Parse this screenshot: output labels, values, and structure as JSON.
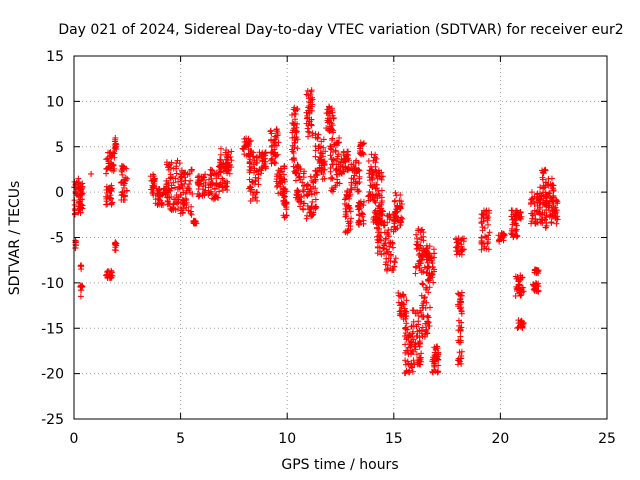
{
  "chart_data": {
    "type": "scatter",
    "title": "Day 021 of 2024, Sidereal Day-to-day VTEC variation (SDTVAR) for receiver eur2",
    "xlabel": "GPS time / hours",
    "ylabel": "SDTVAR / TECUs",
    "xlim": [
      0,
      25
    ],
    "ylim": [
      -25,
      15
    ],
    "xticks": [
      0,
      5,
      10,
      15,
      20,
      25
    ],
    "yticks": [
      -25,
      -20,
      -15,
      -10,
      -5,
      0,
      5,
      10,
      15
    ],
    "xtick_labels": [
      "0",
      "5",
      "10",
      "15",
      "20",
      "25"
    ],
    "ytick_labels": [
      "-25",
      "-20",
      "-15",
      "-10",
      "-5",
      "0",
      "5",
      "10",
      "15"
    ],
    "grid": true,
    "marker": "+",
    "marker_color": "#ff0000",
    "series": [
      {
        "name": "SDTVAR",
        "segments": [
          {
            "x0": 0.0,
            "x1": 0.4,
            "y0": -2.5,
            "y1": 1.5
          },
          {
            "x0": 0.05,
            "x1": 0.1,
            "y0": -6.5,
            "y1": -5.0
          },
          {
            "x0": 0.3,
            "x1": 0.4,
            "y0": -11.5,
            "y1": -10.0
          },
          {
            "x0": 0.3,
            "x1": 0.35,
            "y0": -8.5,
            "y1": -8.0
          },
          {
            "x0": 0.2,
            "x1": 0.4,
            "y0": -2.0,
            "y1": 1.0
          },
          {
            "x0": 0.8,
            "x1": 0.8,
            "y0": 2.0,
            "y1": 2.0
          },
          {
            "x0": 1.5,
            "x1": 1.8,
            "y0": -9.5,
            "y1": -8.5
          },
          {
            "x0": 1.5,
            "x1": 1.9,
            "y0": 2.0,
            "y1": 4.5
          },
          {
            "x0": 1.5,
            "x1": 1.8,
            "y0": -1.5,
            "y1": 1.0
          },
          {
            "x0": 1.9,
            "x1": 2.0,
            "y0": 4.5,
            "y1": 6.0
          },
          {
            "x0": 1.9,
            "x1": 2.0,
            "y0": -6.5,
            "y1": -5.5
          },
          {
            "x0": 2.2,
            "x1": 2.5,
            "y0": -1.0,
            "y1": 3.0
          },
          {
            "x0": 3.6,
            "x1": 3.8,
            "y0": -0.5,
            "y1": 2.0
          },
          {
            "x0": 3.8,
            "x1": 4.5,
            "y0": -1.5,
            "y1": 0.5
          },
          {
            "x0": 4.3,
            "x1": 5.0,
            "y0": -2.0,
            "y1": 3.5
          },
          {
            "x0": 5.0,
            "x1": 5.6,
            "y0": -2.5,
            "y1": 2.5
          },
          {
            "x0": 5.6,
            "x1": 5.8,
            "y0": -3.5,
            "y1": -3.0
          },
          {
            "x0": 5.8,
            "x1": 6.2,
            "y0": -0.5,
            "y1": 2.0
          },
          {
            "x0": 6.3,
            "x1": 6.8,
            "y0": -1.0,
            "y1": 2.5
          },
          {
            "x0": 6.8,
            "x1": 7.2,
            "y0": 0.0,
            "y1": 5.0
          },
          {
            "x0": 7.1,
            "x1": 7.4,
            "y0": 2.0,
            "y1": 4.5
          },
          {
            "x0": 7.9,
            "x1": 8.3,
            "y0": 4.0,
            "y1": 6.0
          },
          {
            "x0": 8.2,
            "x1": 8.7,
            "y0": -1.0,
            "y1": 4.5
          },
          {
            "x0": 8.7,
            "x1": 9.0,
            "y0": 2.0,
            "y1": 4.5
          },
          {
            "x0": 9.2,
            "x1": 9.6,
            "y0": 3.0,
            "y1": 7.0
          },
          {
            "x0": 9.5,
            "x1": 9.9,
            "y0": -0.5,
            "y1": 3.0
          },
          {
            "x0": 9.8,
            "x1": 10.0,
            "y0": -3.0,
            "y1": 0.5
          },
          {
            "x0": 10.2,
            "x1": 10.5,
            "y0": 2.0,
            "y1": 9.5
          },
          {
            "x0": 10.4,
            "x1": 10.8,
            "y0": -2.0,
            "y1": 3.0
          },
          {
            "x0": 10.9,
            "x1": 11.2,
            "y0": 6.0,
            "y1": 11.5
          },
          {
            "x0": 10.9,
            "x1": 11.4,
            "y0": -3.0,
            "y1": 2.0
          },
          {
            "x0": 11.3,
            "x1": 11.8,
            "y0": 1.0,
            "y1": 6.5
          },
          {
            "x0": 11.8,
            "x1": 12.2,
            "y0": 6.5,
            "y1": 9.5
          },
          {
            "x0": 12.0,
            "x1": 12.5,
            "y0": 0.0,
            "y1": 6.0
          },
          {
            "x0": 12.5,
            "x1": 12.9,
            "y0": 2.0,
            "y1": 4.5
          },
          {
            "x0": 12.7,
            "x1": 13.0,
            "y0": -4.5,
            "y1": 0.5
          },
          {
            "x0": 13.0,
            "x1": 13.4,
            "y0": 0.0,
            "y1": 3.5
          },
          {
            "x0": 13.4,
            "x1": 13.6,
            "y0": 4.0,
            "y1": 5.5
          },
          {
            "x0": 13.3,
            "x1": 13.6,
            "y0": -4.0,
            "y1": -1.0
          },
          {
            "x0": 13.8,
            "x1": 14.2,
            "y0": -1.0,
            "y1": 4.5
          },
          {
            "x0": 14.0,
            "x1": 14.5,
            "y0": -3.5,
            "y1": 2.5
          },
          {
            "x0": 14.2,
            "x1": 14.6,
            "y0": -7.0,
            "y1": -2.0
          },
          {
            "x0": 14.6,
            "x1": 15.1,
            "y0": -9.0,
            "y1": -2.0
          },
          {
            "x0": 15.0,
            "x1": 15.4,
            "y0": -4.0,
            "y1": 0.0
          },
          {
            "x0": 15.2,
            "x1": 15.6,
            "y0": -14.0,
            "y1": -11.0
          },
          {
            "x0": 15.5,
            "x1": 15.9,
            "y0": -20.0,
            "y1": -14.0
          },
          {
            "x0": 15.8,
            "x1": 16.3,
            "y0": -19.0,
            "y1": -13.0
          },
          {
            "x0": 16.0,
            "x1": 16.4,
            "y0": -9.0,
            "y1": -4.0
          },
          {
            "x0": 16.3,
            "x1": 16.7,
            "y0": -16.0,
            "y1": -6.0
          },
          {
            "x0": 16.5,
            "x1": 16.9,
            "y0": -10.0,
            "y1": -5.5
          },
          {
            "x0": 16.8,
            "x1": 17.1,
            "y0": -20.0,
            "y1": -18.0
          },
          {
            "x0": 16.9,
            "x1": 17.1,
            "y0": -18.5,
            "y1": -17.0
          },
          {
            "x0": 17.9,
            "x1": 18.3,
            "y0": -7.0,
            "y1": -5.0
          },
          {
            "x0": 18.0,
            "x1": 18.2,
            "y0": -19.0,
            "y1": -11.0
          },
          {
            "x0": 19.1,
            "x1": 19.5,
            "y0": -6.5,
            "y1": -2.0
          },
          {
            "x0": 19.9,
            "x1": 20.2,
            "y0": -5.5,
            "y1": -4.5
          },
          {
            "x0": 20.5,
            "x1": 20.8,
            "y0": -5.0,
            "y1": -2.0
          },
          {
            "x0": 20.7,
            "x1": 21.0,
            "y0": -3.0,
            "y1": -2.0
          },
          {
            "x0": 20.7,
            "x1": 21.1,
            "y0": -11.5,
            "y1": -9.0
          },
          {
            "x0": 20.8,
            "x1": 21.1,
            "y0": -15.0,
            "y1": -14.0
          },
          {
            "x0": 21.5,
            "x1": 21.8,
            "y0": -11.0,
            "y1": -10.0
          },
          {
            "x0": 21.6,
            "x1": 21.8,
            "y0": -9.0,
            "y1": -8.5
          },
          {
            "x0": 21.4,
            "x1": 21.9,
            "y0": -3.5,
            "y1": 0.0
          },
          {
            "x0": 21.8,
            "x1": 22.2,
            "y0": -4.0,
            "y1": 2.5
          },
          {
            "x0": 22.1,
            "x1": 22.5,
            "y0": -2.0,
            "y1": 1.5
          },
          {
            "x0": 22.3,
            "x1": 22.7,
            "y0": -3.5,
            "y1": -0.5
          }
        ]
      }
    ]
  }
}
